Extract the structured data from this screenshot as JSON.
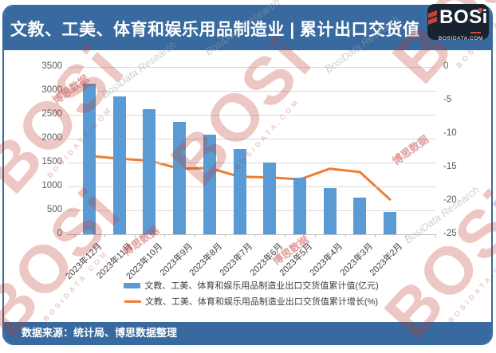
{
  "header": {
    "title": "文教、工美、体育和娱乐用品制造业 | 累计出口交货值",
    "logo": {
      "text": "BOSi",
      "subtext": "BOSIDATA.COM"
    }
  },
  "chart_data": {
    "type": "bar",
    "subtype": "combo-dual-axis",
    "title": "文教、工美、体育和娱乐用品制造业 | 累计出口交货值",
    "categories": [
      "2023年12月",
      "2023年11月",
      "2023年10月",
      "2023年9月",
      "2023年8月",
      "2023年7月",
      "2023年6月",
      "2023年5月",
      "2023年4月",
      "2023年3月",
      "2023年2月"
    ],
    "series": [
      {
        "name": "文教、工美、体育和娱乐用品制造业出口交货值累计值(亿元)",
        "type": "bar",
        "axis": "left",
        "color": "#5B9BD5",
        "values": [
          3150,
          2880,
          2620,
          2350,
          2090,
          1780,
          1500,
          1180,
          960,
          760,
          460
        ]
      },
      {
        "name": "文教、工美、体育和娱乐用品制造业出口交货值累计增长(%)",
        "type": "line",
        "axis": "right",
        "color": "#ED7D31",
        "values": [
          -13.3,
          -13.7,
          -14.0,
          -15.2,
          -15.1,
          -16.4,
          -16.5,
          -16.8,
          -15.2,
          -15.7,
          -19.8
        ]
      }
    ],
    "left_axis": {
      "range": [
        0,
        3500
      ],
      "tick_labels": [
        "3500",
        "3000",
        "2500",
        "2000",
        "1500",
        "1000",
        "500",
        "0"
      ]
    },
    "right_axis": {
      "range": [
        -25,
        0
      ],
      "tick_labels": [
        "0",
        "-5",
        "-10",
        "-15",
        "-20",
        "-25"
      ]
    },
    "grid": true,
    "legend_position": "bottom"
  },
  "footer": {
    "source": "数据来源：统计局、博思数据整理"
  },
  "watermark": {
    "logo_text": "BOSi",
    "domain": "BOSIDATA.COM",
    "brand_cn": "博思数据",
    "brand_en": "BosiData Research"
  },
  "colors": {
    "header_bg": "#386A9F",
    "bar": "#5B9BD5",
    "line": "#ED7D31",
    "logo_bg": "#17232E",
    "logo_red": "#C9423A",
    "gridline": "#D9D9D9"
  }
}
